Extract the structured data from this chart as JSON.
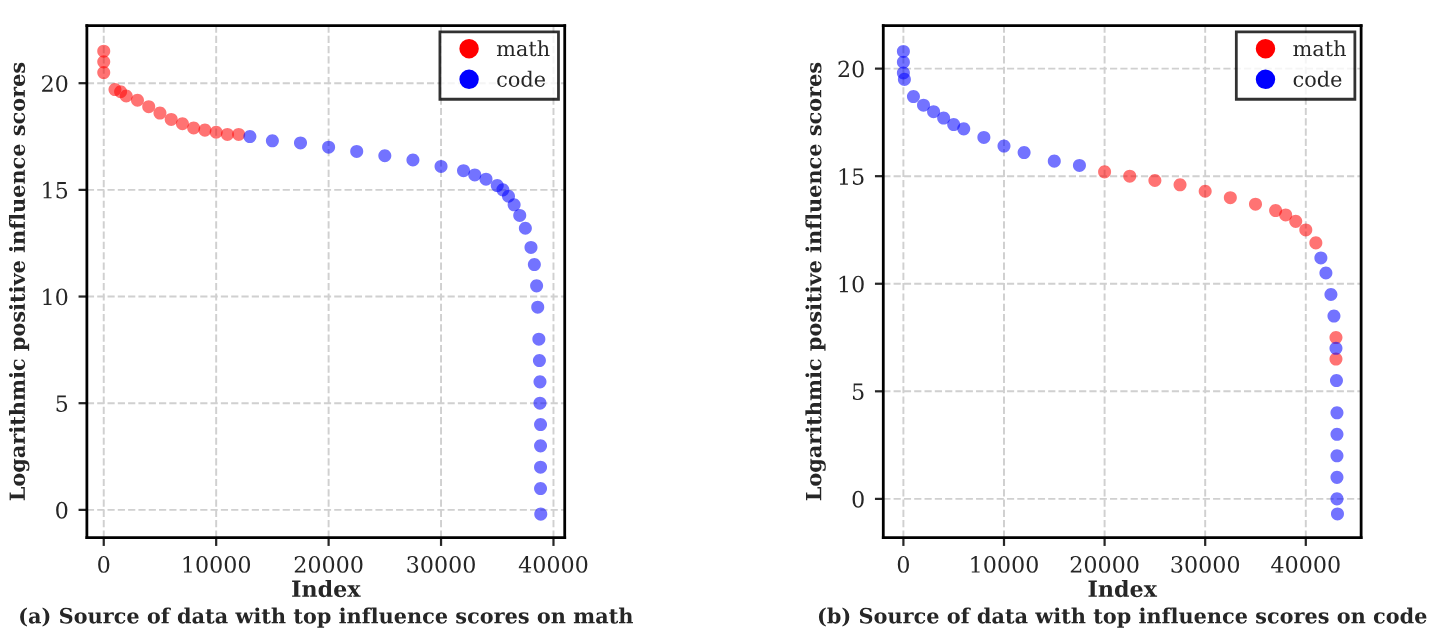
{
  "chart_data": [
    {
      "type": "scatter",
      "title": "(a) Source of data with top influence scores on math",
      "xlabel": "Index",
      "ylabel": "Logarithmic positive influence scores",
      "xlim": [
        -1500,
        41000
      ],
      "ylim": [
        -1.3,
        22.7
      ],
      "xticks": [
        0,
        10000,
        20000,
        30000,
        40000
      ],
      "yticks": [
        0,
        5,
        10,
        15,
        20
      ],
      "grid": true,
      "legend": "top right",
      "marker": "circle",
      "series": [
        {
          "name": "math",
          "color": "#ff0000",
          "x": [
            0,
            0,
            0,
            1000,
            1500,
            2000,
            3000,
            4000,
            5000,
            6000,
            7000,
            8000,
            9000,
            10000,
            11000,
            12000
          ],
          "values": [
            21.5,
            21.0,
            20.5,
            19.7,
            19.6,
            19.4,
            19.2,
            18.9,
            18.6,
            18.3,
            18.1,
            17.9,
            17.8,
            17.7,
            17.6,
            17.6
          ]
        },
        {
          "name": "code",
          "color": "#0000ff",
          "x": [
            13000,
            15000,
            17500,
            20000,
            22500,
            25000,
            27500,
            30000,
            32000,
            33000,
            34000,
            35000,
            35500,
            36000,
            36500,
            37000,
            37500,
            38000,
            38300,
            38500,
            38600,
            38700,
            38750,
            38800,
            38800,
            38850,
            38850,
            38850,
            38850,
            38870
          ],
          "values": [
            17.5,
            17.3,
            17.2,
            17.0,
            16.8,
            16.6,
            16.4,
            16.1,
            15.9,
            15.7,
            15.5,
            15.2,
            15.0,
            14.7,
            14.3,
            13.8,
            13.2,
            12.3,
            11.5,
            10.5,
            9.5,
            8.0,
            7.0,
            6.0,
            5.0,
            4.0,
            3.0,
            2.0,
            1.0,
            -0.2
          ]
        }
      ]
    },
    {
      "type": "scatter",
      "title": "(b) Source of data with top influence scores on code",
      "xlabel": "Index",
      "ylabel": "Logarithmic positive influence scores",
      "xlim": [
        -2000,
        45500
      ],
      "ylim": [
        -1.8,
        22
      ],
      "xticks": [
        0,
        10000,
        20000,
        30000,
        40000
      ],
      "yticks": [
        0,
        5,
        10,
        15,
        20
      ],
      "grid": true,
      "legend": "top right",
      "marker": "circle",
      "series": [
        {
          "name": "math",
          "color": "#ff0000",
          "x": [
            20000,
            22500,
            25000,
            27500,
            30000,
            32500,
            35000,
            37000,
            38000,
            39000,
            40000,
            41000,
            43000,
            43000
          ],
          "values": [
            15.2,
            15.0,
            14.8,
            14.6,
            14.3,
            14.0,
            13.7,
            13.4,
            13.2,
            12.9,
            12.5,
            11.9,
            7.5,
            6.5
          ]
        },
        {
          "name": "code",
          "color": "#0000ff",
          "x": [
            0,
            0,
            0,
            100,
            1000,
            2000,
            3000,
            4000,
            5000,
            6000,
            8000,
            10000,
            12000,
            15000,
            17500,
            41500,
            42000,
            42500,
            42800,
            43000,
            43050,
            43100,
            43100,
            43100,
            43100,
            43100,
            43150
          ],
          "values": [
            20.8,
            20.3,
            19.8,
            19.5,
            18.7,
            18.3,
            18.0,
            17.7,
            17.4,
            17.2,
            16.8,
            16.4,
            16.1,
            15.7,
            15.5,
            11.2,
            10.5,
            9.5,
            8.5,
            7.0,
            5.5,
            4.0,
            3.0,
            2.0,
            1.0,
            0.0,
            -0.7
          ]
        }
      ]
    }
  ]
}
